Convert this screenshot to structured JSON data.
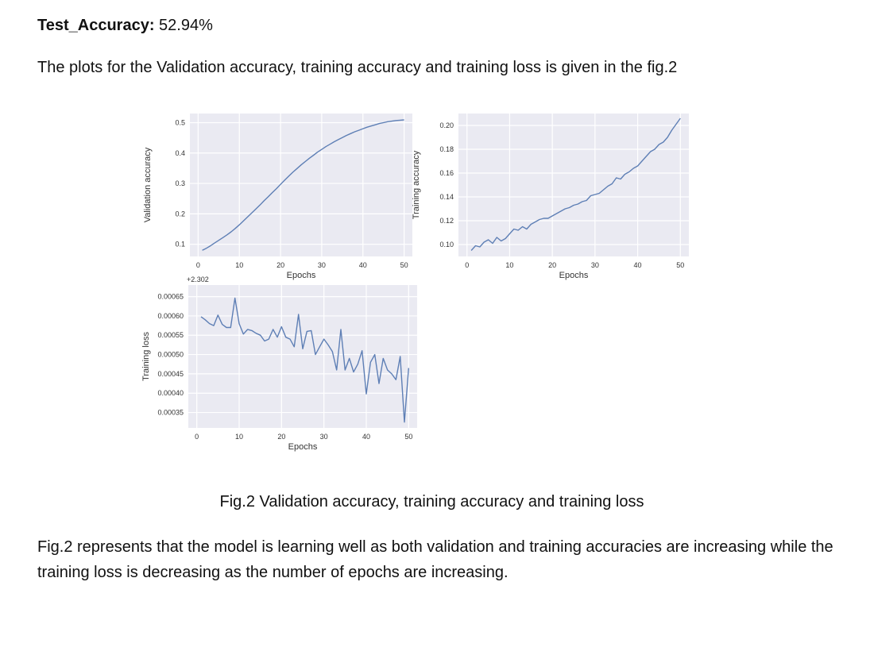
{
  "header": {
    "metric_label": "Test_Accuracy:",
    "metric_value": "52.94%"
  },
  "intro": "The plots for the Validation accuracy, training accuracy and training loss is given in the fig.2",
  "figure": {
    "caption": "Fig.2 Validation accuracy, training accuracy and training loss"
  },
  "body": "Fig.2 represents that the model is learning well as both validation and training accuracies are increasing while the training loss is decreasing as the number of epochs are increasing.",
  "colors": {
    "series": "#5e7fb5",
    "plot_background": "#eaeaf2",
    "grid": "#ffffff"
  },
  "chart_data": [
    {
      "id": "val",
      "type": "line",
      "title": "",
      "xlabel": "Epochs",
      "ylabel": "Validation accuracy",
      "xlim": [
        -2,
        52
      ],
      "ylim": [
        0.06,
        0.53
      ],
      "xticks": [
        0,
        10,
        20,
        30,
        40,
        50
      ],
      "xtick_labels": [
        "0",
        "10",
        "20",
        "30",
        "40",
        "50"
      ],
      "yticks": [
        0.1,
        0.2,
        0.3,
        0.4,
        0.5
      ],
      "ytick_labels": [
        "0.1",
        "0.2",
        "0.3",
        "0.4",
        "0.5"
      ],
      "offset_label": "",
      "grid": true,
      "series": [
        {
          "x": [
            1,
            2,
            3,
            4,
            5,
            6,
            7,
            8,
            9,
            10,
            11,
            12,
            13,
            14,
            15,
            16,
            17,
            18,
            19,
            20,
            21,
            22,
            23,
            24,
            25,
            26,
            27,
            28,
            29,
            30,
            31,
            32,
            33,
            34,
            35,
            36,
            37,
            38,
            39,
            40,
            41,
            42,
            43,
            44,
            45,
            46,
            47,
            48,
            49,
            50
          ],
          "values": [
            0.08,
            0.087,
            0.095,
            0.104,
            0.113,
            0.122,
            0.131,
            0.141,
            0.152,
            0.164,
            0.177,
            0.19,
            0.203,
            0.216,
            0.229,
            0.243,
            0.256,
            0.27,
            0.283,
            0.297,
            0.311,
            0.324,
            0.337,
            0.349,
            0.361,
            0.372,
            0.383,
            0.393,
            0.403,
            0.412,
            0.421,
            0.429,
            0.437,
            0.444,
            0.451,
            0.458,
            0.464,
            0.47,
            0.475,
            0.48,
            0.485,
            0.489,
            0.493,
            0.497,
            0.5,
            0.503,
            0.505,
            0.507,
            0.508,
            0.509
          ]
        }
      ]
    },
    {
      "id": "train",
      "type": "line",
      "title": "",
      "xlabel": "Epochs",
      "ylabel": "Training accuracy",
      "xlim": [
        -2,
        52
      ],
      "ylim": [
        0.09,
        0.21
      ],
      "xticks": [
        0,
        10,
        20,
        30,
        40,
        50
      ],
      "xtick_labels": [
        "0",
        "10",
        "20",
        "30",
        "40",
        "50"
      ],
      "yticks": [
        0.1,
        0.12,
        0.14,
        0.16,
        0.18,
        0.2
      ],
      "ytick_labels": [
        "0.10",
        "0.12",
        "0.14",
        "0.16",
        "0.18",
        "0.20"
      ],
      "offset_label": "",
      "grid": true,
      "series": [
        {
          "x": [
            1,
            2,
            3,
            4,
            5,
            6,
            7,
            8,
            9,
            10,
            11,
            12,
            13,
            14,
            15,
            16,
            17,
            18,
            19,
            20,
            21,
            22,
            23,
            24,
            25,
            26,
            27,
            28,
            29,
            30,
            31,
            32,
            33,
            34,
            35,
            36,
            37,
            38,
            39,
            40,
            41,
            42,
            43,
            44,
            45,
            46,
            47,
            48,
            49,
            50
          ],
          "values": [
            0.095,
            0.099,
            0.098,
            0.102,
            0.104,
            0.101,
            0.106,
            0.103,
            0.105,
            0.109,
            0.113,
            0.112,
            0.115,
            0.113,
            0.117,
            0.119,
            0.121,
            0.122,
            0.122,
            0.124,
            0.126,
            0.128,
            0.13,
            0.131,
            0.133,
            0.134,
            0.136,
            0.137,
            0.141,
            0.142,
            0.143,
            0.146,
            0.149,
            0.151,
            0.156,
            0.155,
            0.159,
            0.161,
            0.164,
            0.166,
            0.17,
            0.174,
            0.178,
            0.18,
            0.184,
            0.186,
            0.19,
            0.196,
            0.201,
            0.206
          ]
        }
      ]
    },
    {
      "id": "loss",
      "type": "line",
      "title": "",
      "xlabel": "Epochs",
      "ylabel": "Training loss",
      "xlim": [
        -2,
        52
      ],
      "ylim": [
        0.00031,
        0.00068
      ],
      "xticks": [
        0,
        10,
        20,
        30,
        40,
        50
      ],
      "xtick_labels": [
        "0",
        "10",
        "20",
        "30",
        "40",
        "50"
      ],
      "yticks": [
        0.00035,
        0.0004,
        0.00045,
        0.0005,
        0.00055,
        0.0006,
        0.00065
      ],
      "ytick_labels": [
        "0.00035",
        "0.00040",
        "0.00045",
        "0.00050",
        "0.00055",
        "0.00060",
        "0.00065"
      ],
      "offset_label": "+2.302",
      "grid": true,
      "series": [
        {
          "x": [
            1,
            2,
            3,
            4,
            5,
            6,
            7,
            8,
            9,
            10,
            11,
            12,
            13,
            14,
            15,
            16,
            17,
            18,
            19,
            20,
            21,
            22,
            23,
            24,
            25,
            26,
            27,
            28,
            29,
            30,
            31,
            32,
            33,
            34,
            35,
            36,
            37,
            38,
            39,
            40,
            41,
            42,
            43,
            44,
            45,
            46,
            47,
            48,
            49,
            50
          ],
          "values": [
            0.000598,
            0.00059,
            0.00058,
            0.000575,
            0.000602,
            0.000578,
            0.00057,
            0.00057,
            0.000646,
            0.00058,
            0.000553,
            0.000565,
            0.000562,
            0.000555,
            0.00055,
            0.000535,
            0.00054,
            0.000565,
            0.000545,
            0.000572,
            0.000545,
            0.00054,
            0.00052,
            0.000604,
            0.000515,
            0.00056,
            0.000562,
            0.0005,
            0.00052,
            0.00054,
            0.000525,
            0.000508,
            0.00046,
            0.000565,
            0.00046,
            0.00049,
            0.000455,
            0.000475,
            0.00051,
            0.000398,
            0.00048,
            0.0005,
            0.000425,
            0.00049,
            0.00046,
            0.00045,
            0.000435,
            0.000495,
            0.000325,
            0.000465
          ]
        }
      ]
    }
  ]
}
